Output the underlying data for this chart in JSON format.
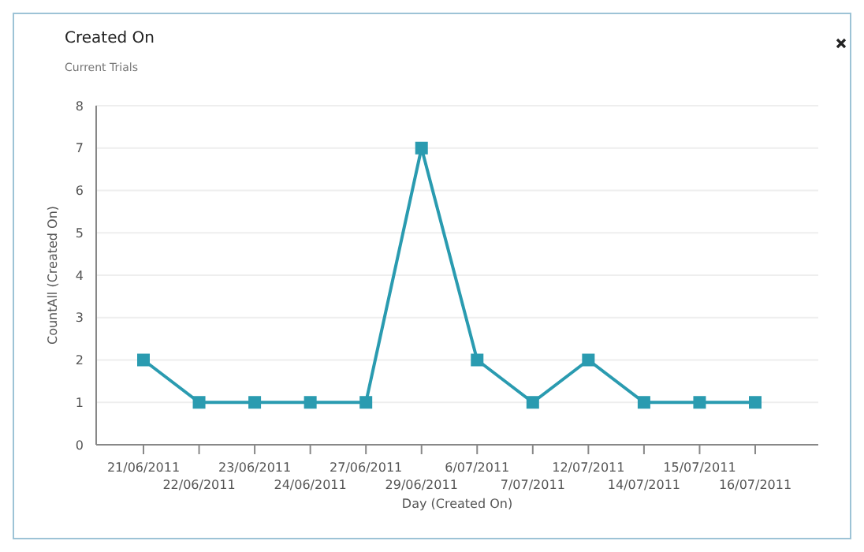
{
  "chart_data": {
    "type": "line",
    "title": "Created On",
    "subtitle": "Current Trials",
    "xlabel": "Day (Created On)",
    "ylabel": "CountAll (Created On)",
    "categories": [
      "21/06/2011",
      "22/06/2011",
      "23/06/2011",
      "24/06/2011",
      "27/06/2011",
      "29/06/2011",
      "6/07/2011",
      "7/07/2011",
      "12/07/2011",
      "14/07/2011",
      "15/07/2011",
      "16/07/2011"
    ],
    "series": [
      {
        "color": "#2a9bb0",
        "values": [
          2,
          1,
          1,
          1,
          1,
          7,
          2,
          1,
          2,
          1,
          1,
          1
        ]
      }
    ],
    "ylim": [
      0,
      8
    ],
    "yticks": [
      0,
      1,
      2,
      3,
      4,
      5,
      6,
      7,
      8
    ],
    "grid": "y",
    "marker": "square",
    "line_style": "solid",
    "legend": false
  }
}
